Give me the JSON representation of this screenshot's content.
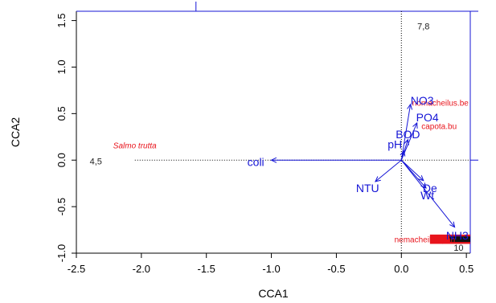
{
  "chart_data": {
    "type": "scatter",
    "xlabel": "CCA1",
    "ylabel": "CCA2",
    "xlim": [
      -2.5,
      0.53
    ],
    "ylim": [
      -1.0,
      1.6
    ],
    "x_ticks": [
      "-2.5",
      "-2.0",
      "-1.5",
      "-1.0",
      "-0.5",
      "0.0",
      "0.5"
    ],
    "y_ticks": [
      "-1.0",
      "-0.5",
      "0.0",
      "0.5",
      "1.0",
      "1.5"
    ],
    "x_tick_values": [
      -2.5,
      -2.0,
      -1.5,
      -1.0,
      -0.5,
      0.0,
      0.5
    ],
    "y_tick_values": [
      -1.0,
      -0.5,
      0.0,
      0.5,
      1.0,
      1.5
    ],
    "grid": false,
    "zero_lines": "dotted",
    "colors": {
      "env": "#1515d6",
      "species": "#e8141c",
      "site": "#222222",
      "axis": "#000000"
    },
    "env_vectors": [
      {
        "label": "NO3",
        "x": 0.07,
        "y": 0.6,
        "lx": 0.16,
        "ly": 0.64
      },
      {
        "label": "PO4",
        "x": 0.12,
        "y": 0.4,
        "lx": 0.2,
        "ly": 0.46
      },
      {
        "label": "BOD",
        "x": 0.05,
        "y": 0.22,
        "lx": 0.05,
        "ly": 0.28
      },
      {
        "label": "pH",
        "x": 0.02,
        "y": 0.1,
        "lx": -0.05,
        "ly": 0.17
      },
      {
        "label": "coli",
        "x": -1.0,
        "y": 0.0,
        "lx": -1.12,
        "ly": -0.02
      },
      {
        "label": "NTU",
        "x": -0.2,
        "y": -0.23,
        "lx": -0.26,
        "ly": -0.3
      },
      {
        "label": "De",
        "x": 0.17,
        "y": -0.22,
        "lx": 0.22,
        "ly": -0.3
      },
      {
        "label": "Wt",
        "x": 0.19,
        "y": -0.3,
        "lx": 0.2,
        "ly": -0.38
      },
      {
        "label": "NH3",
        "x": 0.41,
        "y": -0.72,
        "lx": 0.43,
        "ly": -0.81
      }
    ],
    "species": [
      {
        "label": "Salmo trutta",
        "x": -2.05,
        "y": 0.16,
        "italic": true,
        "size": 11
      },
      {
        "label": "nomacheilus.be",
        "x": 0.3,
        "y": 0.62
      },
      {
        "label": "capota.bu",
        "x": 0.29,
        "y": 0.37
      },
      {
        "label": "nemacheilus.pan",
        "x": 0.18,
        "y": -0.85
      }
    ],
    "sites": [
      {
        "label": "7,8",
        "x": 0.17,
        "y": 1.44
      },
      {
        "label": "4,5",
        "x": -2.35,
        "y": -0.01
      },
      {
        "label": "10",
        "x": 0.44,
        "y": -0.94
      }
    ]
  }
}
